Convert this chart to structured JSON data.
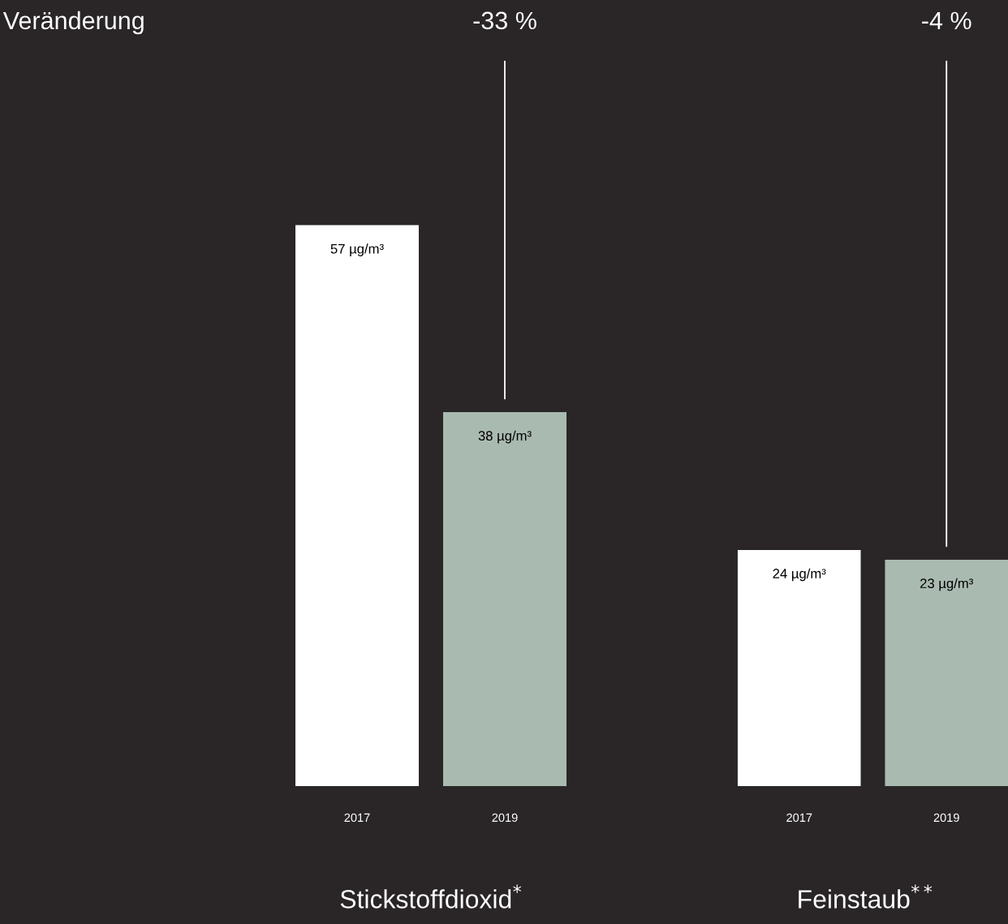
{
  "chart_data": [
    {
      "type": "bar",
      "xlabel": "Stickstoffdioxid$^{*}$",
      "categories": [
        "2017",
        "2019"
      ],
      "values": [
        57,
        38
      ],
      "colors": [
        "#ffffff",
        "#a9bab1"
      ],
      "value_labels": [
        "57 µg/m³",
        "38 µg/m³"
      ],
      "tick_labels": "x",
      "grid": false,
      "legend": false,
      "annotations": [
        "Veränderung",
        "-33 %"
      ]
    },
    {
      "type": "bar",
      "xlabel": "Feinstaub$^{**}$",
      "categories": [
        "2017",
        "2019"
      ],
      "values": [
        24,
        23
      ],
      "colors": [
        "#ffffff",
        "#a9bab1"
      ],
      "value_labels": [
        "24 µg/m³",
        "23 µg/m³"
      ],
      "tick_labels": "x",
      "grid": false,
      "legend": false,
      "annotations": [
        "-4 %"
      ]
    }
  ]
}
